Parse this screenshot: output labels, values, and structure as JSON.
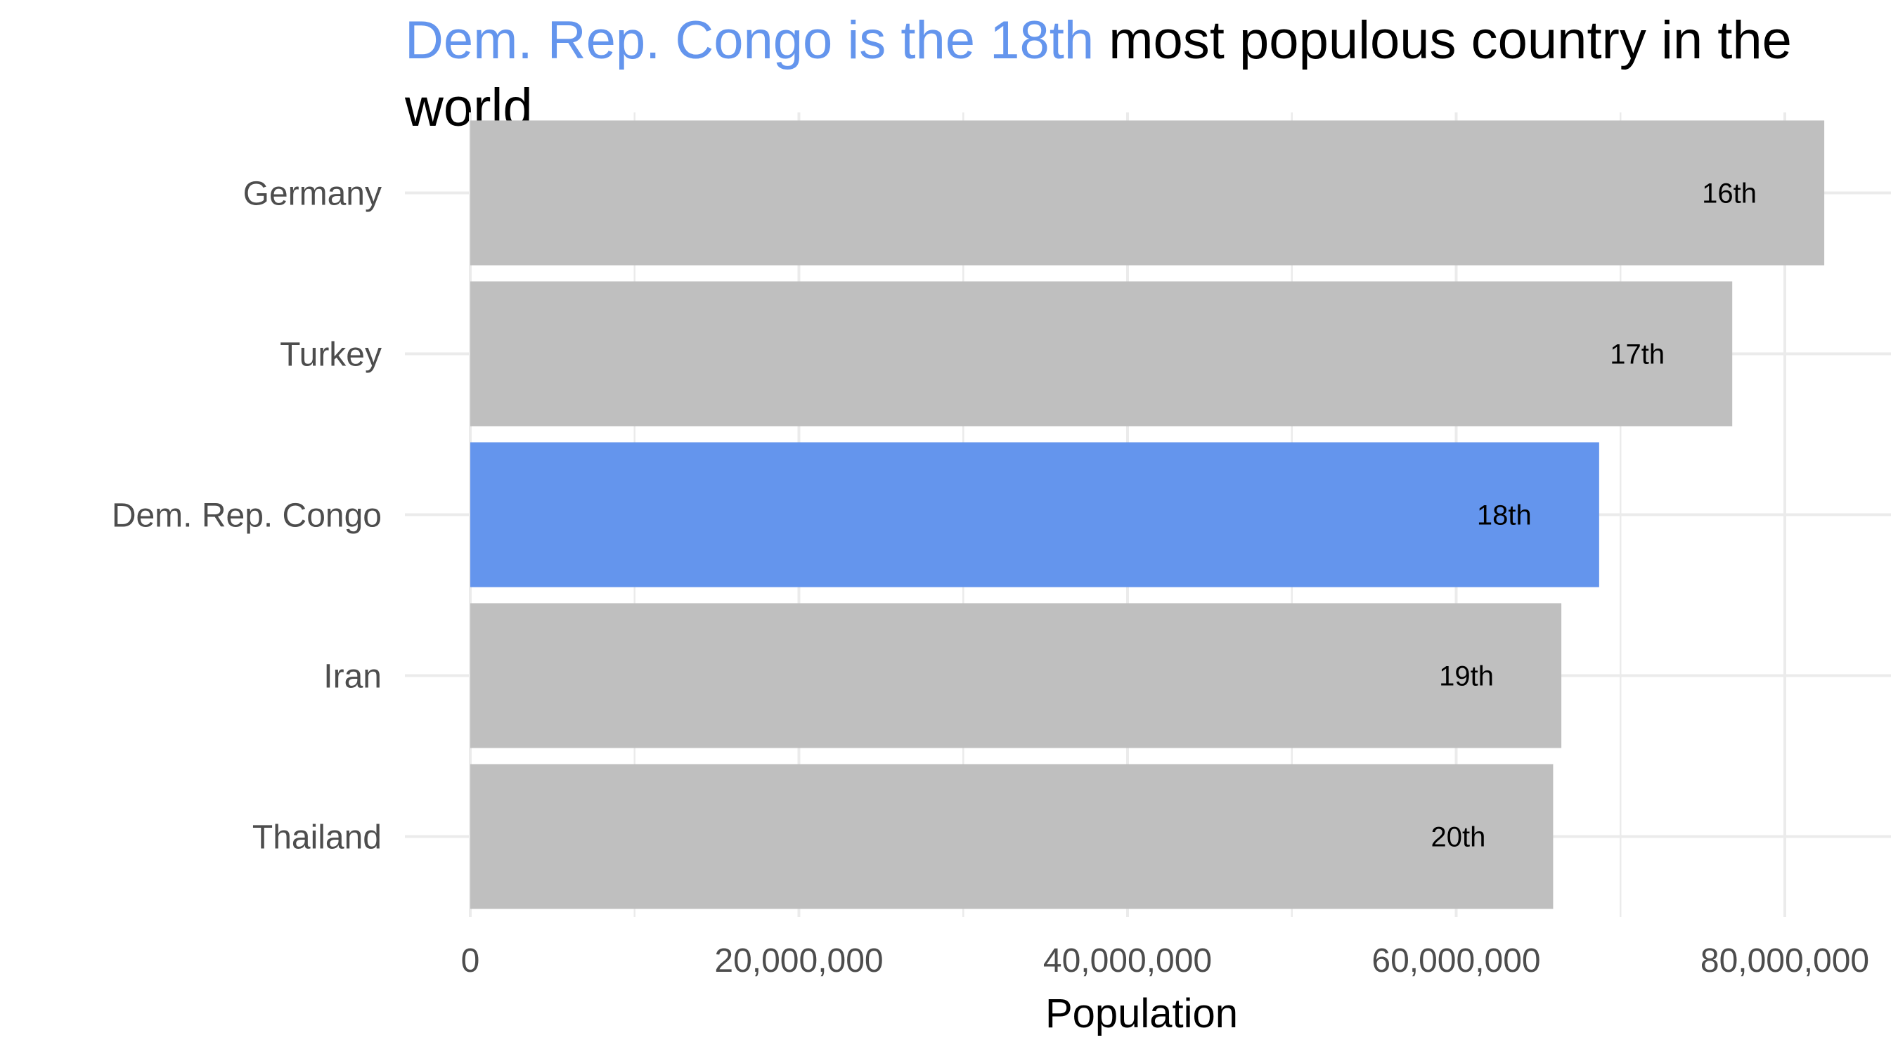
{
  "chart_data": {
    "type": "bar",
    "orientation": "horizontal",
    "title": {
      "highlight": "Dem. Rep. Congo is the 18th",
      "rest": " most populous country in the world"
    },
    "xlabel": "Population",
    "ylabel": "",
    "xlim": [
      0,
      86000000
    ],
    "xticks": [
      0,
      20000000,
      40000000,
      60000000,
      80000000
    ],
    "xtick_labels": [
      "0",
      "20,000,000",
      "40,000,000",
      "60,000,000",
      "80,000,000"
    ],
    "categories": [
      "Germany",
      "Turkey",
      "Dem. Rep. Congo",
      "Iran",
      "Thailand"
    ],
    "values": [
      82400000,
      76800000,
      68700000,
      66400000,
      65900000
    ],
    "bar_labels": [
      "16th",
      "17th",
      "18th",
      "19th",
      "20th"
    ],
    "highlight_index": 2,
    "grid": true,
    "legend": "none"
  },
  "colors": {
    "highlight": "#6495ed",
    "bar": "#bfbfbf",
    "grid": "#ebebeb"
  }
}
